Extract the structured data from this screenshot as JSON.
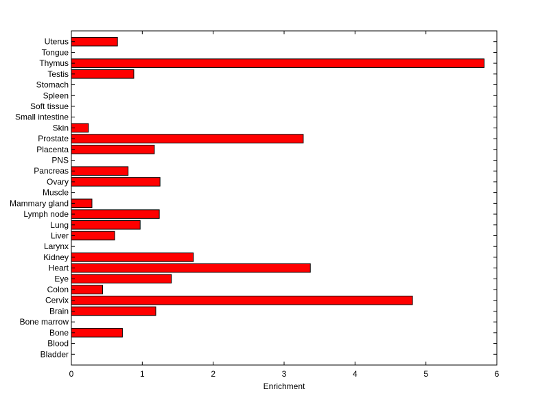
{
  "chart_data": {
    "type": "bar",
    "orientation": "horizontal",
    "categories": [
      "Bladder",
      "Blood",
      "Bone",
      "Bone marrow",
      "Brain",
      "Cervix",
      "Colon",
      "Eye",
      "Heart",
      "Kidney",
      "Larynx",
      "Liver",
      "Lung",
      "Lymph node",
      "Mammary gland",
      "Muscle",
      "Ovary",
      "Pancreas",
      "PNS",
      "Placenta",
      "Prostate",
      "Skin",
      "Small intestine",
      "Soft tissue",
      "Spleen",
      "Stomach",
      "Testis",
      "Thymus",
      "Tongue",
      "Uterus"
    ],
    "values": [
      0,
      0,
      0.72,
      0,
      1.19,
      4.81,
      0.44,
      1.41,
      3.37,
      1.72,
      0,
      0.61,
      0.97,
      1.24,
      0.29,
      0,
      1.25,
      0.8,
      0,
      1.17,
      3.27,
      0.24,
      0,
      0,
      0,
      0,
      0.88,
      5.82,
      0,
      0.65
    ],
    "xlabel": "Enrichment",
    "ylabel": "",
    "title": "",
    "xlim": [
      0,
      6
    ],
    "xticks": [
      0,
      1,
      2,
      3,
      4,
      5,
      6
    ],
    "grid": false,
    "bar_color": "#ff0000",
    "edge_color": "#000000"
  }
}
